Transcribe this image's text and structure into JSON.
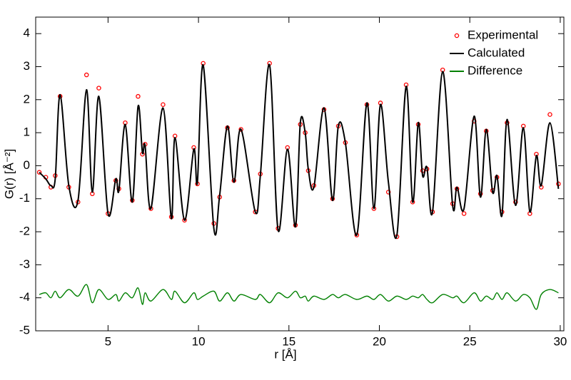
{
  "chart_data": {
    "type": "line",
    "xlabel": "r [Å]",
    "ylabel": "G(r) [Å⁻²]",
    "xlim": [
      1,
      30.2
    ],
    "ylim": [
      -5,
      4.5
    ],
    "xticks": [
      5,
      10,
      15,
      20,
      25,
      30
    ],
    "yticks": [
      -5,
      -4,
      -3,
      -2,
      -1,
      0,
      1,
      2,
      3,
      4
    ],
    "grid": false,
    "legend": "upper right",
    "x": [
      1.2,
      1.56,
      1.84,
      2.08,
      2.35,
      2.83,
      3.34,
      3.81,
      4.13,
      4.49,
      5.0,
      5.43,
      5.6,
      5.95,
      6.34,
      6.66,
      6.9,
      7.05,
      7.37,
      8.04,
      8.5,
      8.7,
      9.23,
      9.74,
      9.94,
      10.26,
      10.85,
      11.17,
      11.6,
      11.96,
      12.35,
      13.14,
      13.42,
      13.93,
      14.4,
      14.92,
      15.36,
      15.63,
      15.9,
      16.07,
      16.38,
      16.94,
      17.41,
      17.73,
      18.12,
      18.75,
      19.31,
      19.7,
      20.06,
      20.5,
      20.97,
      21.48,
      21.84,
      22.15,
      22.39,
      22.63,
      22.94,
      23.5,
      24.05,
      24.29,
      24.68,
      25.24,
      25.59,
      25.91,
      26.26,
      26.5,
      26.78,
      27.06,
      27.53,
      27.96,
      28.32,
      28.68,
      28.95,
      29.43,
      29.9
    ],
    "series": [
      {
        "name": "Experimental",
        "color": "#ff0000",
        "style": "markers",
        "values": [
          -0.2,
          -0.35,
          -0.65,
          -0.3,
          2.1,
          -0.65,
          -1.1,
          2.75,
          -0.85,
          2.35,
          -1.45,
          -0.45,
          -0.7,
          1.3,
          -1.05,
          2.1,
          0.35,
          0.65,
          -1.3,
          1.85,
          -1.55,
          0.9,
          -1.65,
          0.55,
          -0.55,
          3.1,
          -1.75,
          -0.95,
          1.15,
          -0.45,
          1.1,
          -1.4,
          -0.25,
          3.1,
          -1.9,
          0.55,
          -1.8,
          1.25,
          1.0,
          -0.15,
          -0.6,
          1.7,
          -1.0,
          1.2,
          0.7,
          -2.1,
          1.85,
          -1.3,
          1.9,
          -0.8,
          -2.15,
          2.45,
          -1.1,
          1.25,
          -0.15,
          -0.1,
          -1.4,
          2.9,
          -1.15,
          -0.7,
          -1.45,
          1.35,
          -0.85,
          1.05,
          -0.75,
          -0.35,
          -1.4,
          1.3,
          -1.1,
          1.2,
          -1.45,
          0.35,
          -0.65,
          1.55,
          -0.55
        ]
      },
      {
        "name": "Calculated",
        "color": "#000000",
        "style": "line",
        "values": [
          -0.2,
          -0.4,
          -0.6,
          -0.4,
          2.15,
          -0.6,
          -1.05,
          2.3,
          -0.8,
          2.1,
          -1.45,
          -0.4,
          -0.75,
          1.25,
          -1.1,
          1.8,
          0.4,
          0.6,
          -1.3,
          1.75,
          -1.6,
          0.85,
          -1.65,
          0.5,
          -0.5,
          3.05,
          -1.9,
          -0.9,
          1.2,
          -0.5,
          1.1,
          -1.4,
          -0.3,
          3.05,
          -1.95,
          0.5,
          -1.85,
          1.3,
          1.0,
          -0.1,
          -0.65,
          1.75,
          -1.05,
          1.2,
          0.7,
          -2.1,
          1.9,
          -1.3,
          1.85,
          -0.5,
          -2.1,
          2.4,
          -1.1,
          1.3,
          -0.3,
          -0.05,
          -1.4,
          2.85,
          -1.2,
          -0.65,
          -1.3,
          1.5,
          -0.95,
          1.1,
          -0.8,
          -0.3,
          -1.5,
          1.4,
          -1.2,
          1.15,
          -1.4,
          0.3,
          -0.6,
          1.3,
          -0.7
        ]
      },
      {
        "name": "Difference",
        "color": "#008000",
        "style": "line",
        "values": [
          -3.9,
          -3.85,
          -4.0,
          -3.8,
          -4.0,
          -3.75,
          -3.95,
          -3.6,
          -4.15,
          -3.75,
          -4.05,
          -3.9,
          -4.1,
          -3.85,
          -4.0,
          -3.7,
          -4.2,
          -3.85,
          -4.1,
          -3.75,
          -4.05,
          -3.8,
          -4.15,
          -3.85,
          -4.05,
          -3.95,
          -3.8,
          -4.1,
          -3.85,
          -4.1,
          -3.9,
          -4.05,
          -3.9,
          -4.15,
          -3.85,
          -4.0,
          -3.8,
          -4.0,
          -3.95,
          -4.1,
          -3.95,
          -4.05,
          -3.9,
          -4.0,
          -3.9,
          -4.05,
          -3.95,
          -4.05,
          -3.9,
          -4.1,
          -3.95,
          -4.05,
          -3.95,
          -4.0,
          -3.9,
          -4.05,
          -4.15,
          -3.9,
          -4.0,
          -3.95,
          -4.15,
          -3.85,
          -4.1,
          -3.95,
          -4.05,
          -3.85,
          -4.05,
          -3.85,
          -4.1,
          -3.9,
          -4.0,
          -4.35,
          -3.9,
          -3.75,
          -3.85
        ]
      }
    ]
  }
}
